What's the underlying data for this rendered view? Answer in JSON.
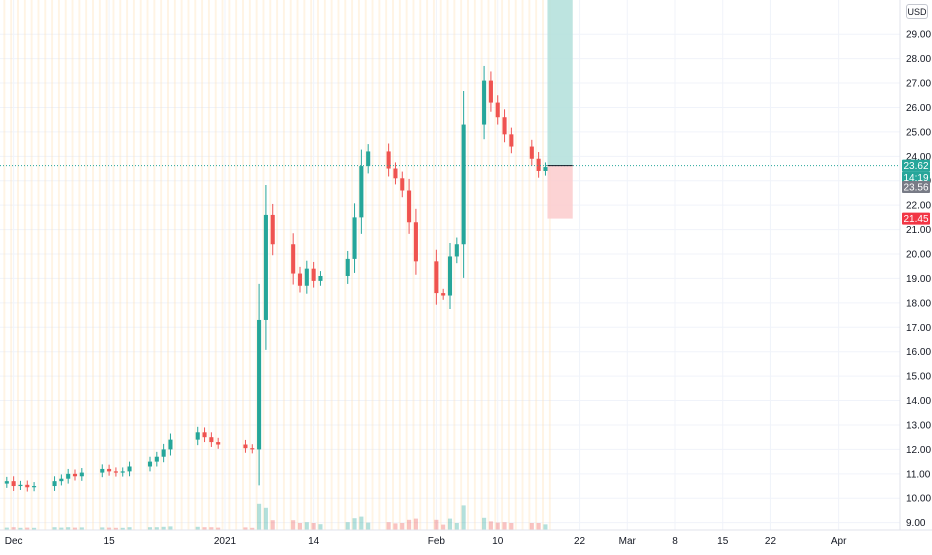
{
  "chart_data": {
    "type": "candlestick",
    "currency": "USD",
    "x_ticks": [
      "Dec",
      "15",
      "2021",
      "14",
      "Feb",
      "10",
      "22",
      "Mar",
      "8",
      "15",
      "22",
      "Apr"
    ],
    "y_ticks": [
      "29.00",
      "28.00",
      "27.00",
      "26.00",
      "25.00",
      "24.00",
      "23.00",
      "22.00",
      "21.00",
      "20.00",
      "19.00",
      "18.00",
      "17.00",
      "16.00",
      "15.00",
      "14.00",
      "13.00",
      "12.00",
      "11.00",
      "10.00",
      "9.00"
    ],
    "y_range": [
      8.7,
      30.4
    ],
    "x_range": [
      "2020-11-29",
      "2021-04-10"
    ],
    "last_price": 23.62,
    "countdown": "14:19",
    "second_price": 23.56,
    "stop_level": 21.45,
    "target_top": 30.4,
    "colors": {
      "up": "#26a69a",
      "down": "#ef5350",
      "session_band": "#ffe0b2",
      "tag_last": "#26a69a",
      "tag_second": "#787b86",
      "tag_stop": "#f23645",
      "zone_profit": "#b2dfdb",
      "zone_loss": "#fccbcd"
    },
    "closes": [
      [
        "2020-11-30",
        10.7
      ],
      [
        "2020-12-01",
        10.5
      ],
      [
        "2020-12-02",
        10.55
      ],
      [
        "2020-12-03",
        10.45
      ],
      [
        "2020-12-04",
        10.5
      ],
      [
        "2020-12-07",
        10.7
      ],
      [
        "2020-12-08",
        10.8
      ],
      [
        "2020-12-09",
        11.0
      ],
      [
        "2020-12-10",
        10.9
      ],
      [
        "2020-12-11",
        11.05
      ],
      [
        "2020-12-14",
        11.2
      ],
      [
        "2020-12-15",
        11.1
      ],
      [
        "2020-12-16",
        11.05
      ],
      [
        "2020-12-17",
        11.1
      ],
      [
        "2020-12-18",
        11.3
      ],
      [
        "2020-12-21",
        11.5
      ],
      [
        "2020-12-22",
        11.7
      ],
      [
        "2020-12-23",
        12.0
      ],
      [
        "2020-12-24",
        12.4
      ],
      [
        "2020-12-28",
        12.7
      ],
      [
        "2020-12-29",
        12.5
      ],
      [
        "2020-12-30",
        12.3
      ],
      [
        "2020-12-31",
        12.2
      ],
      [
        "2021-01-04",
        12.05
      ],
      [
        "2021-01-05",
        12.0
      ],
      [
        "2021-01-06",
        17.3
      ],
      [
        "2021-01-07",
        21.6
      ],
      [
        "2021-01-08",
        20.4
      ],
      [
        "2021-01-11",
        19.2
      ],
      [
        "2021-01-12",
        18.7
      ],
      [
        "2021-01-13",
        19.4
      ],
      [
        "2021-01-14",
        18.9
      ],
      [
        "2021-01-15",
        19.1
      ],
      [
        "2021-01-19",
        19.8
      ],
      [
        "2021-01-20",
        21.5
      ],
      [
        "2021-01-21",
        23.6
      ],
      [
        "2021-01-22",
        24.2
      ],
      [
        "2021-01-25",
        23.5
      ],
      [
        "2021-01-26",
        23.1
      ],
      [
        "2021-01-27",
        22.6
      ],
      [
        "2021-01-28",
        21.3
      ],
      [
        "2021-01-29",
        19.7
      ],
      [
        "2021-02-01",
        18.4
      ],
      [
        "2021-02-02",
        18.3
      ],
      [
        "2021-02-03",
        19.9
      ],
      [
        "2021-02-04",
        20.4
      ],
      [
        "2021-02-05",
        25.3
      ],
      [
        "2021-02-08",
        27.1
      ],
      [
        "2021-02-09",
        26.2
      ],
      [
        "2021-02-10",
        25.6
      ],
      [
        "2021-02-11",
        24.9
      ],
      [
        "2021-02-12",
        24.4
      ],
      [
        "2021-02-15",
        23.9
      ],
      [
        "2021-02-16",
        23.4
      ],
      [
        "2021-02-17",
        23.56
      ]
    ]
  }
}
